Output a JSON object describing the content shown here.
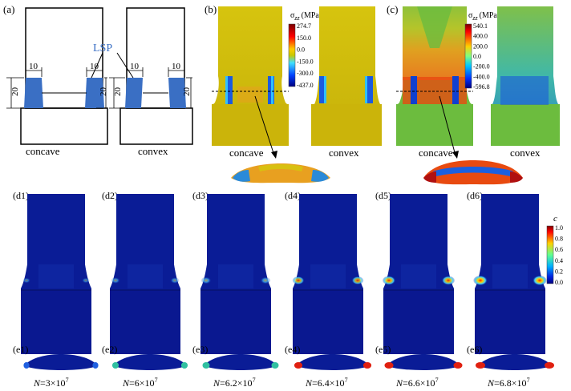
{
  "panel_a": {
    "tag": "(a)",
    "lsp": "LSP",
    "concave_label": "concave",
    "convex_label": "convex",
    "dim_width": "10",
    "dim_height": "20",
    "lsp_color": "#3a6fc4"
  },
  "panel_b": {
    "tag": "(b)",
    "concave_label": "concave",
    "convex_label": "convex",
    "colorbar": {
      "symbol": "σ",
      "subscript": "zz",
      "unit": "(MPa)",
      "ticks": [
        "274.7",
        "150.0",
        "0.0",
        "-150.0",
        "-300.0",
        "-437.0"
      ]
    }
  },
  "panel_c": {
    "tag": "(c)",
    "concave_label": "concave",
    "convex_label": "convex",
    "colorbar": {
      "symbol": "σ",
      "subscript": "zz",
      "unit": "(MPa)",
      "ticks": [
        "540.1",
        "400.0",
        "200.0",
        "0.0",
        "-200.0",
        "-400.0",
        "-596.8"
      ]
    }
  },
  "panel_d": {
    "tags": [
      "(d1)",
      "(d2)",
      "(d3)",
      "(d4)",
      "(d5)",
      "(d6)"
    ],
    "damage_levels": [
      0.2,
      0.35,
      0.5,
      0.7,
      0.85,
      1.0
    ],
    "colorbar": {
      "symbol": "c",
      "ticks": [
        "1.0",
        "0.8",
        "0.6",
        "0.4",
        "0.2",
        "0.0"
      ]
    }
  },
  "panel_e": {
    "tags": [
      "(e1)",
      "(e2)",
      "(e3)",
      "(e4)",
      "(e5)",
      "(e6)"
    ],
    "cycle_symbol": "N",
    "cycles": [
      "=3×10",
      "=6×10",
      "=6.2×10",
      "=6.4×10",
      "=6.6×10",
      "=6.8×10"
    ],
    "exponent": "7"
  }
}
